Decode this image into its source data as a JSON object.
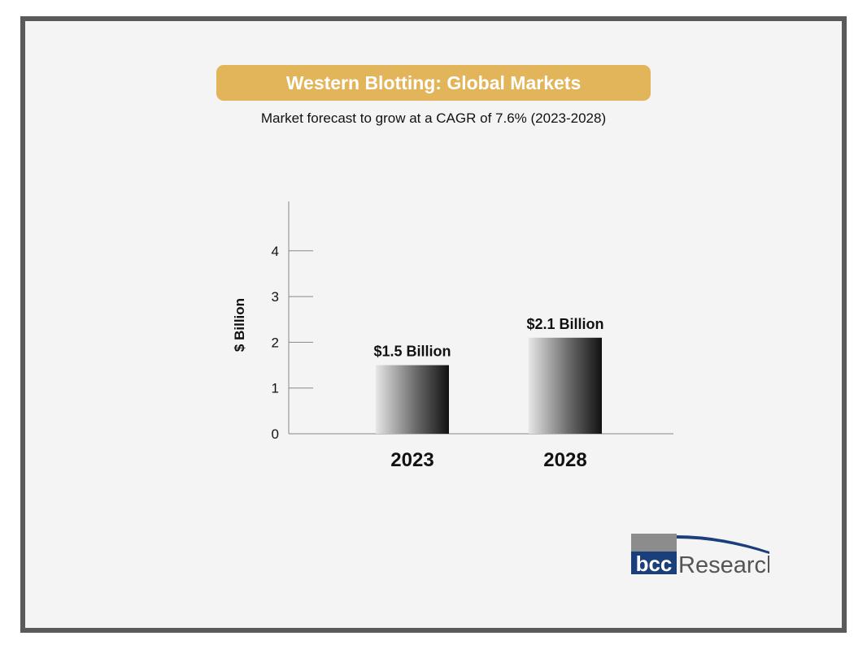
{
  "title": "Western Blotting: Global Markets",
  "subtitle": "Market forecast to grow at a CAGR of 7.6%  (2023-2028)",
  "logo": {
    "part1": "bcc",
    "part2": "Research"
  },
  "colors": {
    "banner": "#e2b55b",
    "frame": "#5a5a5a",
    "axis": "#888888"
  },
  "chart_data": {
    "type": "bar",
    "categories": [
      "2023",
      "2028"
    ],
    "values": [
      1.5,
      2.1
    ],
    "data_labels": [
      "$1.5 Billion",
      "$2.1 Billion"
    ],
    "ylabel": "$ Billion",
    "xlabel": "",
    "yticks": [
      0,
      1,
      2,
      3,
      4
    ],
    "ylim": [
      0,
      5
    ],
    "grid": false,
    "legend": "none"
  }
}
